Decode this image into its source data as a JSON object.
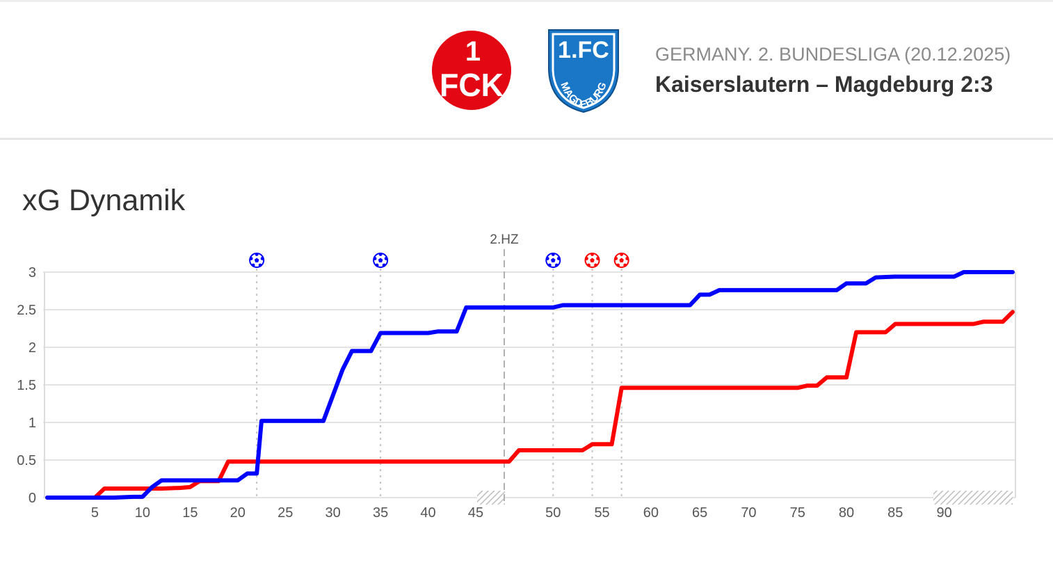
{
  "header": {
    "league": "GERMANY. 2. BUNDESLIGA (20.12.2025)",
    "match": "Kaiserslautern – Magdeburg 2:3",
    "home_logo": {
      "icon": "fck-kaiserslautern-logo",
      "text_top": "1",
      "text_mid": "FCK",
      "color": "#e30613"
    },
    "away_logo": {
      "icon": "1fc-magdeburg-logo",
      "text_top": "1.FC",
      "text_arc": "MAGDEBURG",
      "color": "#1a77c8"
    }
  },
  "section": {
    "title": "xG Dynamik"
  },
  "chart_data": {
    "type": "line",
    "title": "",
    "xlabel": "",
    "ylabel": "",
    "x_ticks": [
      5,
      10,
      15,
      20,
      25,
      30,
      35,
      40,
      45,
      50,
      55,
      60,
      65,
      70,
      75,
      80,
      85,
      90
    ],
    "y_ticks": [
      "0",
      "0.5",
      "1",
      "1.5",
      "2",
      "2.5",
      "3"
    ],
    "ylim": [
      0,
      3
    ],
    "grid": true,
    "halftime_label": "2.HZ",
    "series": [
      {
        "team": "home",
        "color": "#ff0000",
        "points": [
          [
            0,
            0
          ],
          [
            5,
            0
          ],
          [
            6,
            0.12
          ],
          [
            8,
            0.12
          ],
          [
            10,
            0.12
          ],
          [
            12,
            0.12
          ],
          [
            14,
            0.13
          ],
          [
            15,
            0.14
          ],
          [
            16,
            0.22
          ],
          [
            18,
            0.22
          ],
          [
            19,
            0.48
          ],
          [
            25,
            0.48
          ],
          [
            30,
            0.48
          ],
          [
            35,
            0.48
          ],
          [
            40,
            0.48
          ],
          [
            45.5,
            0.48
          ],
          [
            46.5,
            0.63
          ],
          [
            49,
            0.63
          ],
          [
            53,
            0.63
          ],
          [
            54,
            0.71
          ],
          [
            56,
            0.71
          ],
          [
            57,
            1.46
          ],
          [
            65,
            1.46
          ],
          [
            70,
            1.46
          ],
          [
            75,
            1.46
          ],
          [
            76,
            1.49
          ],
          [
            77,
            1.49
          ],
          [
            78,
            1.6
          ],
          [
            80,
            1.6
          ],
          [
            81,
            2.2
          ],
          [
            84,
            2.2
          ],
          [
            85,
            2.31
          ],
          [
            90,
            2.31
          ],
          [
            93,
            2.31
          ],
          [
            94,
            2.34
          ],
          [
            96,
            2.34
          ],
          [
            97,
            2.47
          ]
        ]
      },
      {
        "team": "away",
        "color": "#0000ff",
        "points": [
          [
            0,
            0
          ],
          [
            7,
            0
          ],
          [
            9,
            0.01
          ],
          [
            10,
            0.01
          ],
          [
            11,
            0.14
          ],
          [
            12,
            0.23
          ],
          [
            15,
            0.23
          ],
          [
            18,
            0.23
          ],
          [
            20,
            0.23
          ],
          [
            21,
            0.32
          ],
          [
            22,
            0.32
          ],
          [
            22.5,
            1.02
          ],
          [
            25,
            1.02
          ],
          [
            29,
            1.02
          ],
          [
            31,
            1.7
          ],
          [
            32,
            1.95
          ],
          [
            34,
            1.95
          ],
          [
            35,
            2.19
          ],
          [
            40,
            2.19
          ],
          [
            41,
            2.21
          ],
          [
            43,
            2.21
          ],
          [
            44,
            2.53
          ],
          [
            50,
            2.53
          ],
          [
            51,
            2.56
          ],
          [
            55,
            2.56
          ],
          [
            60,
            2.56
          ],
          [
            64,
            2.56
          ],
          [
            65,
            2.7
          ],
          [
            66,
            2.7
          ],
          [
            67,
            2.76
          ],
          [
            70,
            2.76
          ],
          [
            75,
            2.76
          ],
          [
            79,
            2.76
          ],
          [
            80,
            2.85
          ],
          [
            82,
            2.85
          ],
          [
            83,
            2.93
          ],
          [
            85,
            2.94
          ],
          [
            90,
            2.94
          ],
          [
            91,
            2.94
          ],
          [
            92,
            3.0
          ],
          [
            97,
            3.0
          ]
        ]
      }
    ],
    "goals": [
      {
        "team": "away",
        "minute": 22,
        "color": "#0000ff",
        "icon": "football-icon"
      },
      {
        "team": "away",
        "minute": 35,
        "color": "#0000ff",
        "icon": "football-icon"
      },
      {
        "team": "away",
        "minute": 50,
        "color": "#0000ff",
        "icon": "football-icon"
      },
      {
        "team": "home",
        "minute": 54,
        "color": "#ff0000",
        "icon": "football-icon"
      },
      {
        "team": "home",
        "minute": 57,
        "color": "#ff0000",
        "icon": "football-icon"
      }
    ]
  }
}
